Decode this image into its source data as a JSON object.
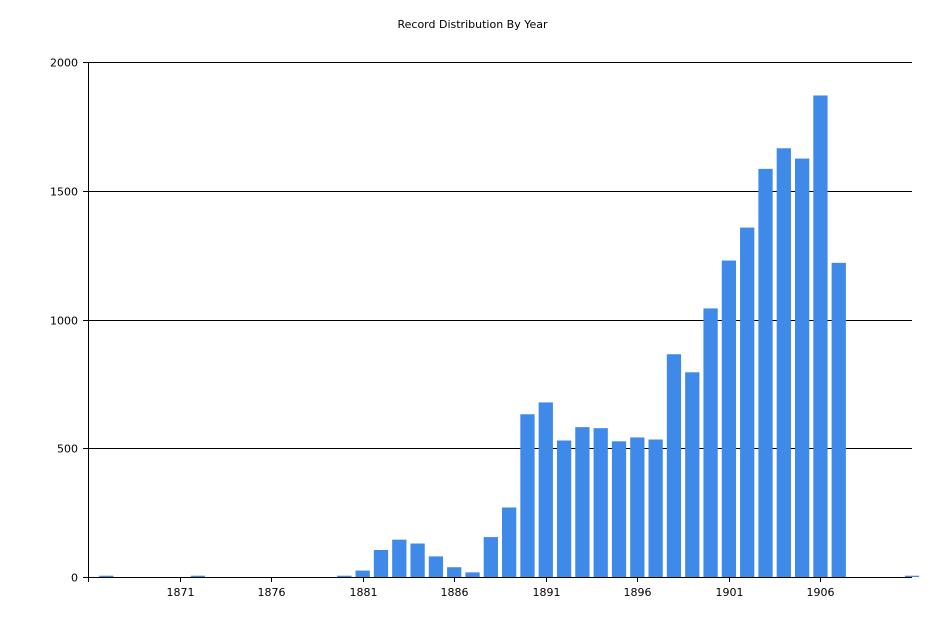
{
  "chart_data": {
    "type": "bar",
    "title": "Record Distribution By Year",
    "xlabel": "",
    "ylabel": "",
    "ylim": [
      0,
      2000
    ],
    "xlim": [
      1866,
      1911
    ],
    "grid": true,
    "legend": "none",
    "bar_color": "#3f8ae8",
    "x_tick_labels": [
      "1871",
      "1876",
      "1881",
      "1886",
      "1891",
      "1896",
      "1901",
      "1906"
    ],
    "y_tick_labels": [
      "0",
      "500",
      "1000",
      "1500",
      "2000"
    ],
    "x": [
      1867,
      1872,
      1880,
      1881,
      1882,
      1883,
      1884,
      1885,
      1886,
      1887,
      1888,
      1889,
      1890,
      1891,
      1892,
      1893,
      1894,
      1895,
      1896,
      1897,
      1898,
      1899,
      1900,
      1901,
      1902,
      1903,
      1904,
      1905,
      1906,
      1907,
      1911
    ],
    "values": [
      5,
      5,
      5,
      25,
      105,
      145,
      130,
      80,
      38,
      18,
      155,
      270,
      632,
      678,
      530,
      582,
      578,
      527,
      542,
      534,
      865,
      795,
      1043,
      1229,
      1357,
      1585,
      1665,
      1625,
      1870,
      1220,
      5
    ]
  }
}
